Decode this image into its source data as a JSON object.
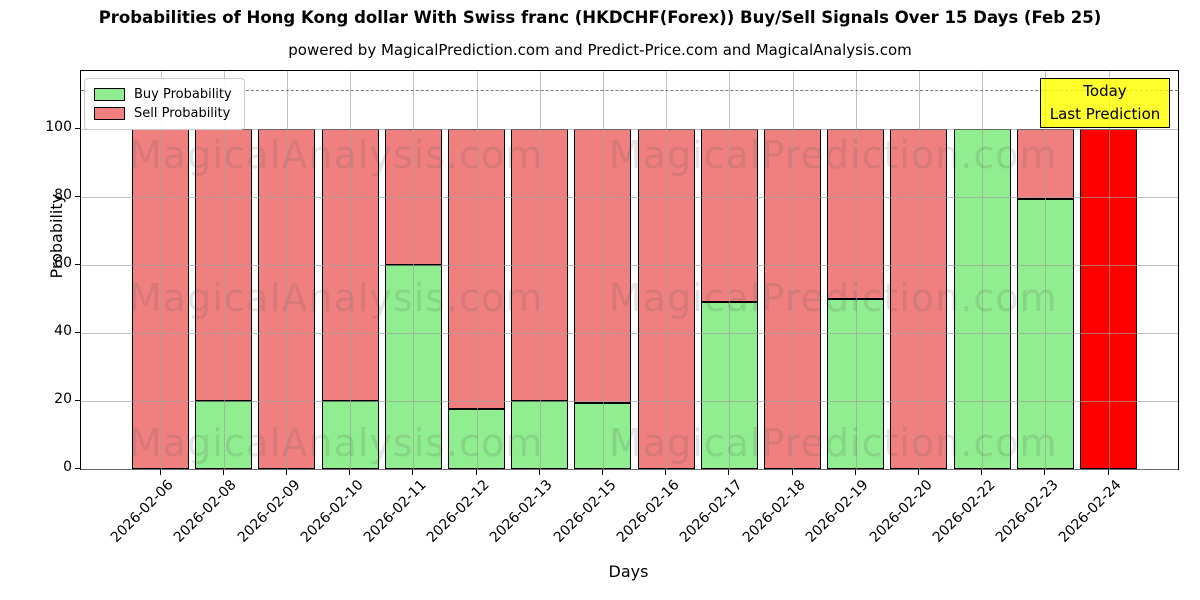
{
  "title": "Probabilities of Hong Kong dollar With Swiss franc (HKDCHF(Forex)) Buy/Sell Signals Over 15 Days (Feb 25)",
  "subtitle": "powered by MagicalPrediction.com and Predict-Price.com and MagicalAnalysis.com",
  "axes": {
    "x_label": "Days",
    "y_label": "Probability",
    "y_ticks": [
      0,
      20,
      40,
      60,
      80,
      100
    ]
  },
  "legend": {
    "items": [
      {
        "label": "Buy Probability",
        "color": "#90EE90"
      },
      {
        "label": "Sell Probability",
        "color": "#F08080"
      }
    ]
  },
  "annotation_box": {
    "line1": "Today",
    "line2": "Last Prediction",
    "bg_color": "#FFFF00"
  },
  "watermarks": [
    "MagicalAnalysis.com",
    "MagicalPrediction.com"
  ],
  "colors": {
    "buy": "#90EE90",
    "sell": "#F08080",
    "today_bar": "#FF0000",
    "grid": "#a0a0a0",
    "dashed_line": "#7a7a7a"
  },
  "chart_data": {
    "type": "bar",
    "stacked": true,
    "title": "Probabilities of Hong Kong dollar With Swiss franc (HKDCHF(Forex)) Buy/Sell Signals Over 15 Days (Feb 25)",
    "xlabel": "Days",
    "ylabel": "Probability",
    "ylim": [
      0,
      117
    ],
    "yticks": [
      0,
      20,
      40,
      60,
      80,
      100
    ],
    "grid": true,
    "legend_position": "upper left",
    "dashed_line_y": 111.5,
    "categories": [
      "2026-02-06",
      "2026-02-08",
      "2026-02-09",
      "2026-02-10",
      "2026-02-11",
      "2026-02-12",
      "2026-02-13",
      "2026-02-15",
      "2026-02-16",
      "2026-02-17",
      "2026-02-18",
      "2026-02-19",
      "2026-02-20",
      "2026-02-22",
      "2026-02-23",
      "2026-02-24"
    ],
    "series": [
      {
        "name": "Buy Probability",
        "color": "#90EE90",
        "values": [
          0,
          20,
          0,
          20,
          60,
          17.5,
          20,
          19.5,
          0,
          49,
          0,
          50,
          0,
          100,
          79.5,
          0
        ]
      },
      {
        "name": "Sell Probability",
        "color": "#F08080",
        "values": [
          100,
          80,
          100,
          80,
          40,
          82.5,
          80,
          80.5,
          100,
          51,
          100,
          50,
          100,
          0,
          20.5,
          100
        ]
      }
    ],
    "today_index": 15,
    "today_bar_color": "#FF0000",
    "today_annotation": "Today / Last Prediction"
  }
}
